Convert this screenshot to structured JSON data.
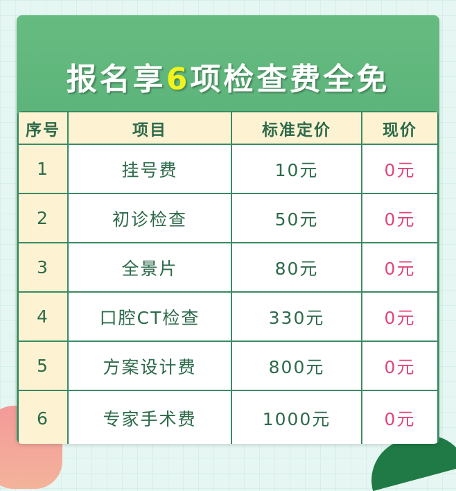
{
  "title": {
    "before": "报名享",
    "highlight": "6",
    "after": "项检查费全免"
  },
  "headers": [
    "序号",
    "项目",
    "标准定价",
    "现价"
  ],
  "rows": [
    {
      "no": "1",
      "item": "挂号费",
      "standard": "10元",
      "now": "0元"
    },
    {
      "no": "2",
      "item": "初诊检查",
      "standard": "50元",
      "now": "0元"
    },
    {
      "no": "3",
      "item": "全景片",
      "standard": "80元",
      "now": "0元"
    },
    {
      "no": "4",
      "item": "口腔CT检查",
      "standard": "330元",
      "now": "0元"
    },
    {
      "no": "5",
      "item": "方案设计费",
      "standard": "800元",
      "now": "0元"
    },
    {
      "no": "6",
      "item": "专家手术费",
      "standard": "1000元",
      "now": "0元"
    }
  ],
  "colors": {
    "green": "#3e9e68",
    "highlight": "#f0f31c",
    "price_now": "#e0457b",
    "header_bg": "#fdf3d2"
  }
}
